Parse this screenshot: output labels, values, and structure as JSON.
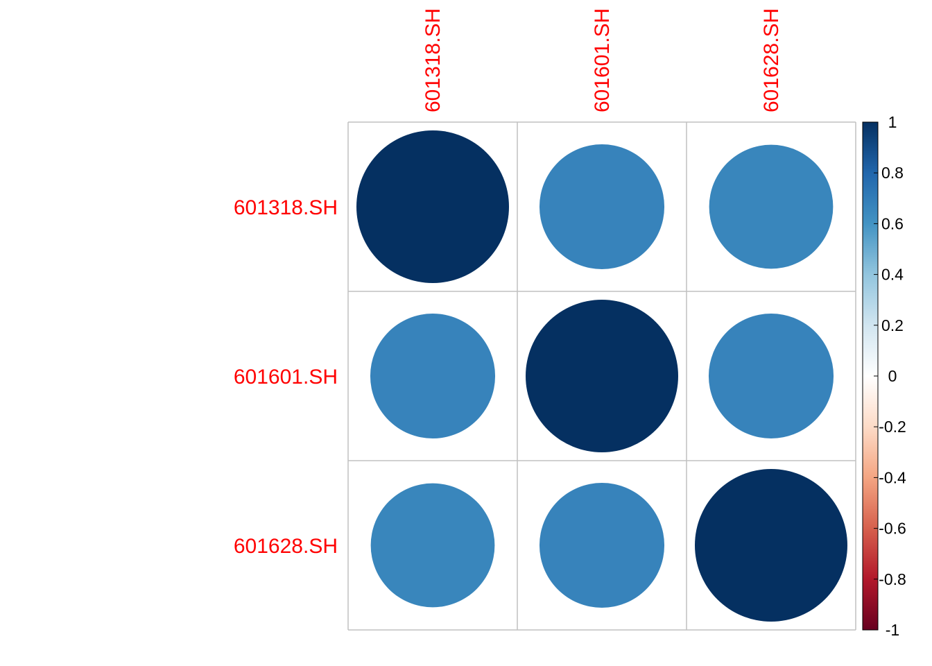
{
  "chart_data": {
    "type": "heatmap",
    "subtype": "correlation-circle-matrix",
    "variables": [
      "601318.SH",
      "601601.SH",
      "601628.SH"
    ],
    "matrix": [
      [
        1.0,
        0.67,
        0.66
      ],
      [
        0.67,
        1.0,
        0.67
      ],
      [
        0.66,
        0.67,
        1.0
      ]
    ],
    "color_scale": {
      "range": [
        -1,
        1
      ],
      "stops": [
        {
          "value": -1.0,
          "color": "#67001F"
        },
        {
          "value": -0.8,
          "color": "#B2182B"
        },
        {
          "value": -0.6,
          "color": "#D6604D"
        },
        {
          "value": -0.4,
          "color": "#F4A582"
        },
        {
          "value": -0.2,
          "color": "#FDDBC7"
        },
        {
          "value": 0.0,
          "color": "#FFFFFF"
        },
        {
          "value": 0.2,
          "color": "#D1E5F0"
        },
        {
          "value": 0.4,
          "color": "#92C5DE"
        },
        {
          "value": 0.6,
          "color": "#4393C3"
        },
        {
          "value": 0.8,
          "color": "#2166AC"
        },
        {
          "value": 1.0,
          "color": "#053061"
        }
      ]
    },
    "colorbar_ticks": [
      "1",
      "0.8",
      "0.6",
      "0.4",
      "0.2",
      "0",
      "-0.2",
      "-0.4",
      "-0.6",
      "-0.8",
      "-1"
    ],
    "label_color": "#FF0000",
    "grid_color": "#C0C0C0",
    "legend_position": "right",
    "title": "",
    "xlabel": "",
    "ylabel": ""
  }
}
